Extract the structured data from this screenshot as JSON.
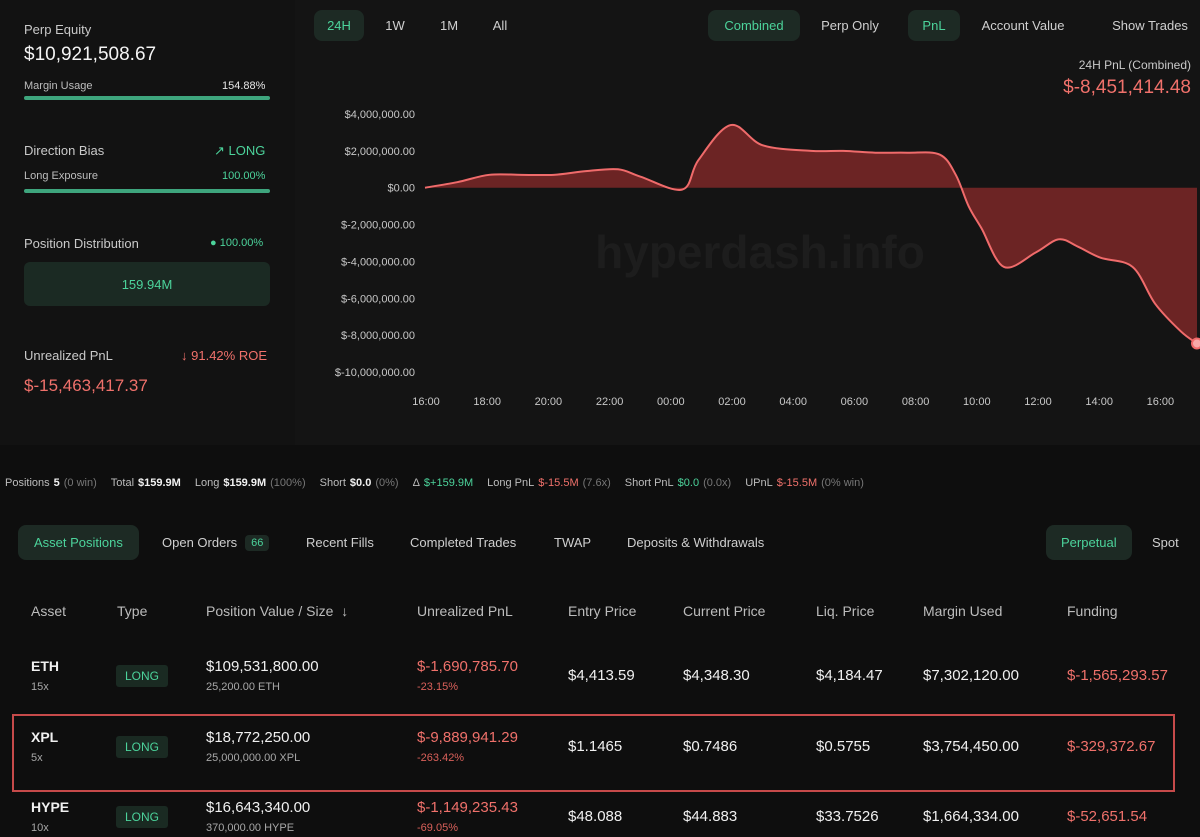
{
  "summary": {
    "perp_equity_label": "Perp Equity",
    "perp_equity_value": "$10,921,508.67",
    "margin_usage_label": "Margin Usage",
    "margin_usage_value": "154.88%",
    "margin_usage_fill": 1.0,
    "direction_bias_label": "Direction Bias",
    "direction_bias_value": "LONG",
    "long_exposure_label": "Long Exposure",
    "long_exposure_value": "100.00%",
    "long_exposure_fill": 1.0,
    "position_distribution_label": "Position Distribution",
    "position_distribution_pct": "100.00%",
    "position_distribution_value": "159.94M",
    "unrealized_pnl_label": "Unrealized PnL",
    "roe_value": "91.42% ROE",
    "unrealized_pnl_value": "$-15,463,417.37"
  },
  "range_tabs": [
    "24H",
    "1W",
    "1M",
    "All"
  ],
  "range_active": "24H",
  "view_tabs": {
    "combined": "Combined",
    "perp_only": "Perp Only",
    "pnl": "PnL",
    "account_value": "Account Value",
    "show_trades": "Show Trades"
  },
  "pnl_header": {
    "label": "24H PnL (Combined)",
    "value": "$-8,451,414.48"
  },
  "watermark": "hyperdash.info",
  "chart_data": {
    "type": "area",
    "x_ticks": [
      "16:00",
      "18:00",
      "20:00",
      "22:00",
      "00:00",
      "02:00",
      "04:00",
      "06:00",
      "08:00",
      "10:00",
      "12:00",
      "14:00",
      "16:00"
    ],
    "y_ticks": [
      "$4,000,000.00",
      "$2,000,000.00",
      "$0.00",
      "$-2,000,000.00",
      "$-4,000,000.00",
      "$-6,000,000.00",
      "$-8,000,000.00",
      "$-10,000,000.00"
    ],
    "ylim": [
      -10000000,
      4000000
    ],
    "series": [
      {
        "x_hours": [
          0,
          1,
          2,
          3,
          4,
          5,
          6,
          6.7,
          8,
          8.5,
          9.5,
          10.5,
          12,
          13,
          14,
          15,
          16,
          16.5,
          16.9,
          17.3,
          18,
          19,
          19.7,
          20.3,
          21,
          22,
          22.7,
          23.5,
          24
        ],
        "values": [
          0,
          300000,
          700000,
          700000,
          700000,
          900000,
          1000000,
          600000,
          -100000,
          1500000,
          3400000,
          2300000,
          2000000,
          2000000,
          1900000,
          1900000,
          1800000,
          700000,
          -1000000,
          -2200000,
          -4300000,
          -3500000,
          -2800000,
          -3200000,
          -3800000,
          -4300000,
          -6300000,
          -7800000,
          -8451414
        ]
      }
    ],
    "colors": {
      "line": "#f06b6b",
      "area": "#8a2a2a"
    }
  },
  "stats": {
    "positions_label": "Positions",
    "positions_value": "5",
    "positions_note": "(0 win)",
    "total_label": "Total",
    "total_value": "$159.9M",
    "long_label": "Long",
    "long_value": "$159.9M",
    "long_note": "(100%)",
    "short_label": "Short",
    "short_value": "$0.0",
    "short_note": "(0%)",
    "delta_label": "Δ",
    "delta_value": "$+159.9M",
    "long_pnl_label": "Long PnL",
    "long_pnl_value": "$-15.5M",
    "long_pnl_note": "(7.6x)",
    "short_pnl_label": "Short PnL",
    "short_pnl_value": "$0.0",
    "short_pnl_note": "(0.0x)",
    "upnl_label": "UPnL",
    "upnl_value": "$-15.5M",
    "upnl_note": "(0% win)"
  },
  "bottom_tabs": {
    "asset_positions": "Asset Positions",
    "open_orders": "Open Orders",
    "open_orders_count": "66",
    "recent_fills": "Recent Fills",
    "completed_trades": "Completed Trades",
    "twap": "TWAP",
    "deposits": "Deposits & Withdrawals",
    "perpetual": "Perpetual",
    "spot": "Spot"
  },
  "table": {
    "headers": [
      "Asset",
      "Type",
      "Position Value / Size",
      "Unrealized PnL",
      "Entry Price",
      "Current Price",
      "Liq. Price",
      "Margin Used",
      "Funding"
    ],
    "rows": [
      {
        "asset": "ETH",
        "leverage": "15x",
        "type": "LONG",
        "value": "$109,531,800.00",
        "size": "25,200.00 ETH",
        "upnl": "$-1,690,785.70",
        "upnl_pct": "-23.15%",
        "entry": "$4,413.59",
        "current": "$4,348.30",
        "liq": "$4,184.47",
        "margin": "$7,302,120.00",
        "funding": "$-1,565,293.57"
      },
      {
        "asset": "XPL",
        "leverage": "5x",
        "type": "LONG",
        "value": "$18,772,250.00",
        "size": "25,000,000.00 XPL",
        "upnl": "$-9,889,941.29",
        "upnl_pct": "-263.42%",
        "entry": "$1.1465",
        "current": "$0.7486",
        "liq": "$0.5755",
        "margin": "$3,754,450.00",
        "funding": "$-329,372.67"
      },
      {
        "asset": "HYPE",
        "leverage": "10x",
        "type": "LONG",
        "value": "$16,643,340.00",
        "size": "370,000.00 HYPE",
        "upnl": "$-1,149,235.43",
        "upnl_pct": "-69.05%",
        "entry": "$48.088",
        "current": "$44.883",
        "liq": "$33.7526",
        "margin": "$1,664,334.00",
        "funding": "$-52,651.54"
      }
    ]
  }
}
